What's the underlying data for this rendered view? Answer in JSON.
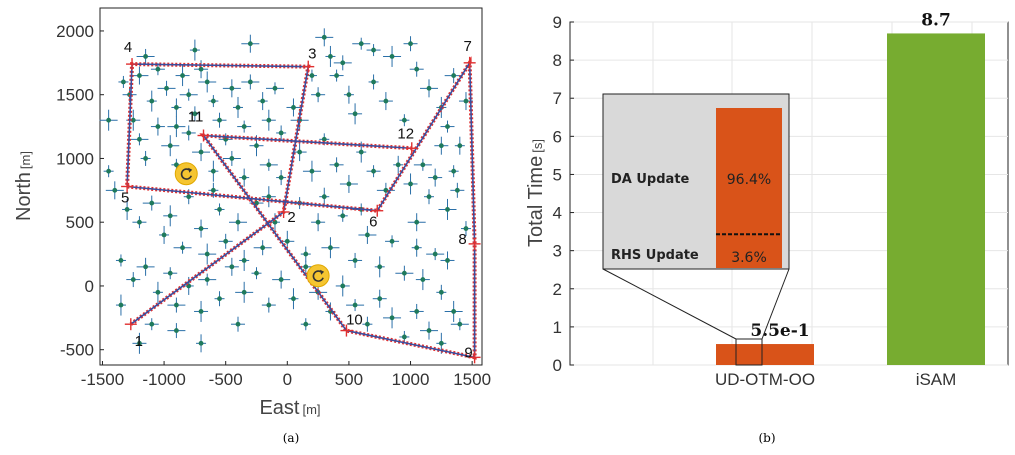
{
  "chart_data": [
    {
      "type": "scatter",
      "panel": "(a)",
      "xlabel": "East",
      "xunit": "[m]",
      "ylabel": "North",
      "yunit": "[m]",
      "xlim": [
        -1520,
        1580
      ],
      "ylim": [
        -620,
        2180
      ],
      "xticks": [
        -1500,
        -1000,
        -500,
        0,
        500,
        1000,
        1500
      ],
      "xtick_labels": [
        "-1500",
        "-1000",
        "-500",
        "0",
        "500",
        "1000",
        "1500"
      ],
      "yticks": [
        -500,
        0,
        500,
        1000,
        1500,
        2000
      ],
      "ytick_labels": [
        "-500",
        "0",
        "500",
        "1000",
        "1500",
        "2000"
      ],
      "grid": false,
      "waypoints": [
        {
          "label": "1",
          "x": -1270,
          "y": -300
        },
        {
          "label": "2",
          "x": -30,
          "y": 580
        },
        {
          "label": "3",
          "x": 170,
          "y": 1720
        },
        {
          "label": "4",
          "x": -1260,
          "y": 1740
        },
        {
          "label": "5",
          "x": -1300,
          "y": 780
        },
        {
          "label": "6",
          "x": 730,
          "y": 590
        },
        {
          "label": "7",
          "x": 1480,
          "y": 1750
        },
        {
          "label": "8",
          "x": 1520,
          "y": 330
        },
        {
          "label": "9",
          "x": 1520,
          "y": -560
        },
        {
          "label": "10",
          "x": 480,
          "y": -350
        },
        {
          "label": "11",
          "x": -680,
          "y": 1180
        },
        {
          "label": "12",
          "x": 1010,
          "y": 1080
        }
      ],
      "trajectory_order": [
        "1",
        "2",
        "3",
        "4",
        "5",
        "6",
        "7",
        "8",
        "9",
        "10",
        "11",
        "12"
      ],
      "landmarks": [
        [
          -1330,
          1600
        ],
        [
          -1280,
          1500
        ],
        [
          -1200,
          1650
        ],
        [
          -1100,
          1450
        ],
        [
          -1050,
          1700
        ],
        [
          -980,
          1550
        ],
        [
          -900,
          1400
        ],
        [
          -850,
          1650
        ],
        [
          -800,
          1500
        ],
        [
          -750,
          1350
        ],
        [
          -700,
          1700
        ],
        [
          -650,
          1600
        ],
        [
          -600,
          1450
        ],
        [
          -550,
          1300
        ],
        [
          -450,
          1550
        ],
        [
          -400,
          1400
        ],
        [
          -350,
          1250
        ],
        [
          -300,
          1600
        ],
        [
          -200,
          1450
        ],
        [
          -150,
          1300
        ],
        [
          -100,
          1550
        ],
        [
          -50,
          1200
        ],
        [
          50,
          1400
        ],
        [
          100,
          1300
        ],
        [
          200,
          1650
        ],
        [
          250,
          1500
        ],
        [
          300,
          1950
        ],
        [
          350,
          1800
        ],
        [
          400,
          1650
        ],
        [
          450,
          1750
        ],
        [
          500,
          1500
        ],
        [
          550,
          1350
        ],
        [
          600,
          1900
        ],
        [
          700,
          1600
        ],
        [
          800,
          1450
        ],
        [
          850,
          1800
        ],
        [
          950,
          1300
        ],
        [
          1050,
          1700
        ],
        [
          1150,
          1550
        ],
        [
          1250,
          1400
        ],
        [
          1300,
          1250
        ],
        [
          1350,
          1650
        ],
        [
          1400,
          1100
        ],
        [
          -1250,
          1300
        ],
        [
          -1200,
          1150
        ],
        [
          -1150,
          1000
        ],
        [
          -1050,
          1250
        ],
        [
          -950,
          1100
        ],
        [
          -900,
          950
        ],
        [
          -800,
          1200
        ],
        [
          -700,
          1050
        ],
        [
          -600,
          900
        ],
        [
          -500,
          1150
        ],
        [
          -450,
          1000
        ],
        [
          -350,
          850
        ],
        [
          -250,
          1100
        ],
        [
          -150,
          950
        ],
        [
          -50,
          850
        ],
        [
          100,
          1050
        ],
        [
          200,
          900
        ],
        [
          300,
          1150
        ],
        [
          400,
          950
        ],
        [
          500,
          800
        ],
        [
          600,
          1050
        ],
        [
          700,
          900
        ],
        [
          800,
          750
        ],
        [
          900,
          950
        ],
        [
          1000,
          800
        ],
        [
          1100,
          950
        ],
        [
          1150,
          700
        ],
        [
          1200,
          850
        ],
        [
          1300,
          600
        ],
        [
          1350,
          900
        ],
        [
          1380,
          750
        ],
        [
          -1400,
          750
        ],
        [
          -1300,
          600
        ],
        [
          -1200,
          500
        ],
        [
          -1100,
          650
        ],
        [
          -1000,
          400
        ],
        [
          -950,
          550
        ],
        [
          -850,
          300
        ],
        [
          -800,
          700
        ],
        [
          -700,
          450
        ],
        [
          -650,
          250
        ],
        [
          -550,
          600
        ],
        [
          -500,
          350
        ],
        [
          -400,
          500
        ],
        [
          -350,
          200
        ],
        [
          -250,
          650
        ],
        [
          -200,
          300
        ],
        [
          -100,
          500
        ],
        [
          0,
          350
        ],
        [
          100,
          650
        ],
        [
          150,
          250
        ],
        [
          250,
          500
        ],
        [
          350,
          300
        ],
        [
          450,
          550
        ],
        [
          550,
          200
        ],
        [
          650,
          400
        ],
        [
          750,
          150
        ],
        [
          850,
          350
        ],
        [
          950,
          100
        ],
        [
          1050,
          300
        ],
        [
          1100,
          50
        ],
        [
          1200,
          250
        ],
        [
          1250,
          -50
        ],
        [
          1300,
          200
        ],
        [
          1350,
          -200
        ],
        [
          -1350,
          200
        ],
        [
          -1250,
          50
        ],
        [
          -1150,
          150
        ],
        [
          -1050,
          -50
        ],
        [
          -950,
          100
        ],
        [
          -900,
          -150
        ],
        [
          -800,
          0
        ],
        [
          -700,
          -200
        ],
        [
          -650,
          50
        ],
        [
          -550,
          -100
        ],
        [
          -450,
          150
        ],
        [
          -350,
          -50
        ],
        [
          -250,
          100
        ],
        [
          -150,
          -150
        ],
        [
          -50,
          50
        ],
        [
          50,
          -100
        ],
        [
          150,
          150
        ],
        [
          250,
          -50
        ],
        [
          350,
          -200
        ],
        [
          450,
          0
        ],
        [
          550,
          -150
        ],
        [
          650,
          -300
        ],
        [
          750,
          -100
        ],
        [
          850,
          -250
        ],
        [
          950,
          -400
        ],
        [
          1050,
          -200
        ],
        [
          1150,
          -350
        ],
        [
          1250,
          -450
        ],
        [
          -1100,
          -300
        ],
        [
          -900,
          -350
        ],
        [
          -700,
          -450
        ],
        [
          -1200,
          -450
        ],
        [
          1400,
          -300
        ],
        [
          1450,
          450
        ],
        [
          1450,
          1450
        ],
        [
          -1450,
          1300
        ],
        [
          -1450,
          900
        ],
        [
          1000,
          1900
        ],
        [
          -300,
          1900
        ],
        [
          -750,
          1850
        ],
        [
          700,
          1850
        ],
        [
          -1150,
          1800
        ],
        [
          300,
          700
        ],
        [
          -150,
          700
        ],
        [
          600,
          600
        ],
        [
          -600,
          750
        ],
        [
          1250,
          1100
        ],
        [
          -900,
          1250
        ],
        [
          150,
          -300
        ],
        [
          -400,
          -300
        ],
        [
          1050,
          500
        ],
        [
          -1350,
          -150
        ]
      ],
      "icons": [
        "rotate-icon",
        "rotate-icon"
      ]
    },
    {
      "type": "bar",
      "panel": "(b)",
      "categories": [
        "UD-OTM-OO",
        "iSAM"
      ],
      "values": [
        0.55,
        8.7
      ],
      "value_labels": [
        "5.5e-1",
        "8.7"
      ],
      "colors": [
        "#d95319",
        "#77ac30"
      ],
      "ylabel": "Total Time",
      "yunit": "[s]",
      "ylim": [
        0,
        9
      ],
      "yticks": [
        0,
        1,
        2,
        3,
        4,
        5,
        6,
        7,
        8,
        9
      ],
      "ytick_labels": [
        "0",
        "1",
        "2",
        "3",
        "4",
        "5",
        "6",
        "7",
        "8",
        "9"
      ],
      "grid": true,
      "inset": {
        "segments": [
          {
            "name": "DA Update",
            "label": "96.4%",
            "fraction": 0.964
          },
          {
            "name": "RHS Update",
            "label": "3.6%",
            "fraction": 0.036
          }
        ],
        "bar_color": "#d95319",
        "background": "#d9d9d9"
      }
    }
  ],
  "captions": [
    "(a)",
    "(b)"
  ]
}
